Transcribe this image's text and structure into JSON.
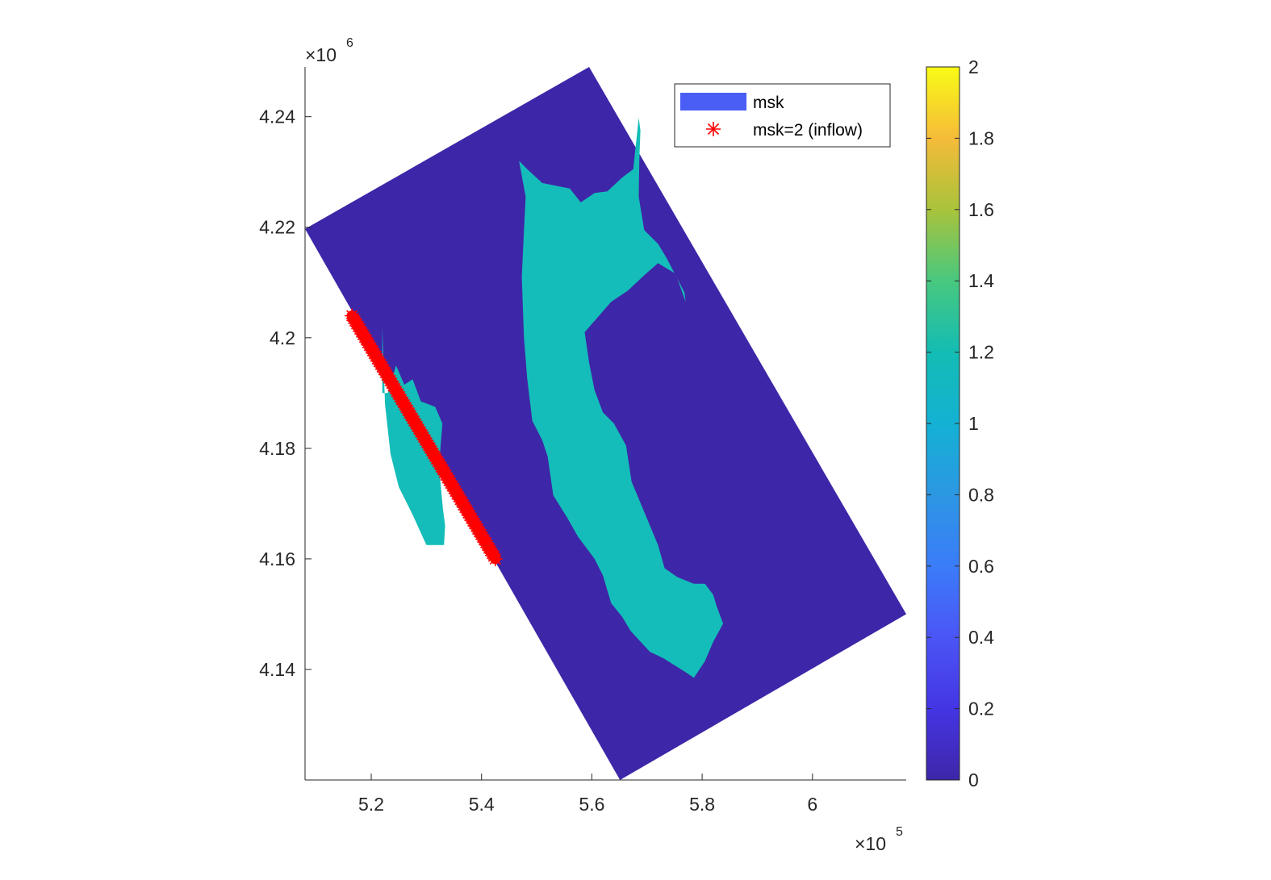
{
  "chart_data": {
    "type": "heatmap",
    "title": "",
    "xlabel": "",
    "ylabel": "",
    "x_exponent": {
      "base": "×10",
      "power": "5"
    },
    "y_exponent": {
      "base": "×10",
      "power": "6"
    },
    "xlim": [
      5.08,
      6.17
    ],
    "ylim": [
      4.12,
      4.249
    ],
    "x_ticks": [
      5.2,
      5.4,
      5.6,
      5.8,
      6.0
    ],
    "x_tick_labels": [
      "5.2",
      "5.4",
      "5.6",
      "5.8",
      "6"
    ],
    "y_ticks": [
      4.14,
      4.16,
      4.18,
      4.2,
      4.22,
      4.24
    ],
    "y_tick_labels": [
      "4.14",
      "4.16",
      "4.18",
      "4.2",
      "4.22",
      "4.24"
    ],
    "grid_corners": [
      [
        5.08,
        4.2197
      ],
      [
        5.595,
        4.249
      ],
      [
        6.17,
        4.15
      ],
      [
        5.651,
        4.12
      ]
    ],
    "domain_value": 0,
    "water_value": 1,
    "domain_color": "#3e26a8",
    "water_color": "#14bdb9",
    "water_outline": [
      [
        5.22,
        4.202
      ],
      [
        5.22,
        4.19
      ],
      [
        5.23,
        4.19
      ],
      [
        5.245,
        4.195
      ],
      [
        5.26,
        4.1915
      ],
      [
        5.275,
        4.1925
      ],
      [
        5.29,
        4.1885
      ],
      [
        5.316,
        4.1875
      ],
      [
        5.329,
        4.1845
      ],
      [
        5.325,
        4.1795
      ],
      [
        5.323,
        4.1765
      ],
      [
        5.33,
        4.169
      ],
      [
        5.334,
        4.166
      ],
      [
        5.332,
        4.1625
      ],
      [
        5.3,
        4.1625
      ],
      [
        5.275,
        4.168
      ],
      [
        5.25,
        4.173
      ],
      [
        5.235,
        4.179
      ],
      [
        5.23,
        4.1835
      ],
      [
        5.225,
        4.188
      ]
    ],
    "bay_outline": [
      [
        5.685,
        4.2398
      ],
      [
        5.675,
        4.2305
      ],
      [
        5.655,
        4.229
      ],
      [
        5.628,
        4.2265
      ],
      [
        5.605,
        4.2262
      ],
      [
        5.58,
        4.2245
      ],
      [
        5.56,
        4.227
      ],
      [
        5.51,
        4.228
      ],
      [
        5.483,
        4.2305
      ],
      [
        5.468,
        4.232
      ],
      [
        5.48,
        4.2255
      ],
      [
        5.477,
        4.2195
      ],
      [
        5.473,
        4.211
      ],
      [
        5.477,
        4.2
      ],
      [
        5.483,
        4.1925
      ],
      [
        5.492,
        4.185
      ],
      [
        5.51,
        4.1815
      ],
      [
        5.52,
        4.1785
      ],
      [
        5.53,
        4.1715
      ],
      [
        5.555,
        4.1675
      ],
      [
        5.575,
        4.164
      ],
      [
        5.605,
        4.16
      ],
      [
        5.62,
        4.157
      ],
      [
        5.635,
        4.152
      ],
      [
        5.655,
        4.1495
      ],
      [
        5.67,
        4.147
      ],
      [
        5.705,
        4.1432
      ],
      [
        5.73,
        4.142
      ],
      [
        5.77,
        4.1395
      ],
      [
        5.785,
        4.1385
      ],
      [
        5.805,
        4.1415
      ],
      [
        5.82,
        4.145
      ],
      [
        5.838,
        4.1483
      ],
      [
        5.826,
        4.1515
      ],
      [
        5.82,
        4.1535
      ],
      [
        5.805,
        4.1555
      ],
      [
        5.785,
        4.1555
      ],
      [
        5.755,
        4.1567
      ],
      [
        5.732,
        4.1583
      ],
      [
        5.72,
        4.1625
      ],
      [
        5.695,
        4.1685
      ],
      [
        5.672,
        4.174
      ],
      [
        5.662,
        4.1805
      ],
      [
        5.64,
        4.1845
      ],
      [
        5.62,
        4.1865
      ],
      [
        5.605,
        4.1905
      ],
      [
        5.595,
        4.1955
      ],
      [
        5.587,
        4.201
      ],
      [
        5.635,
        4.2065
      ],
      [
        5.665,
        4.2085
      ],
      [
        5.697,
        4.2115
      ],
      [
        5.72,
        4.2135
      ],
      [
        5.75,
        4.2117
      ],
      [
        5.768,
        4.2082
      ],
      [
        5.77,
        4.2065
      ],
      [
        5.755,
        4.2107
      ],
      [
        5.735,
        4.2145
      ],
      [
        5.72,
        4.217
      ],
      [
        5.695,
        4.2195
      ],
      [
        5.685,
        4.2255
      ],
      [
        5.686,
        4.232
      ],
      [
        5.688,
        4.2375
      ]
    ],
    "inflow_line": [
      [
        5.165,
        4.204
      ],
      [
        5.425,
        4.16
      ]
    ],
    "inflow_color": "#ff0000",
    "colorbar": {
      "min": 0,
      "max": 2,
      "ticks": [
        0,
        0.2,
        0.4,
        0.6,
        0.8,
        1,
        1.2,
        1.4,
        1.6,
        1.8,
        2
      ],
      "tick_labels": [
        "0",
        "0.2",
        "0.4",
        "0.6",
        "0.8",
        "1",
        "1.2",
        "1.4",
        "1.6",
        "1.8",
        "2"
      ],
      "colormap": "parula"
    },
    "legend": {
      "placement": "top-right",
      "entries": [
        {
          "label": "msk",
          "marker": "patch",
          "color": "#4a5ef5"
        },
        {
          "label": "msk=2 (inflow)",
          "marker": "asterisk",
          "color": "#ff0000"
        }
      ]
    },
    "grid": false
  }
}
